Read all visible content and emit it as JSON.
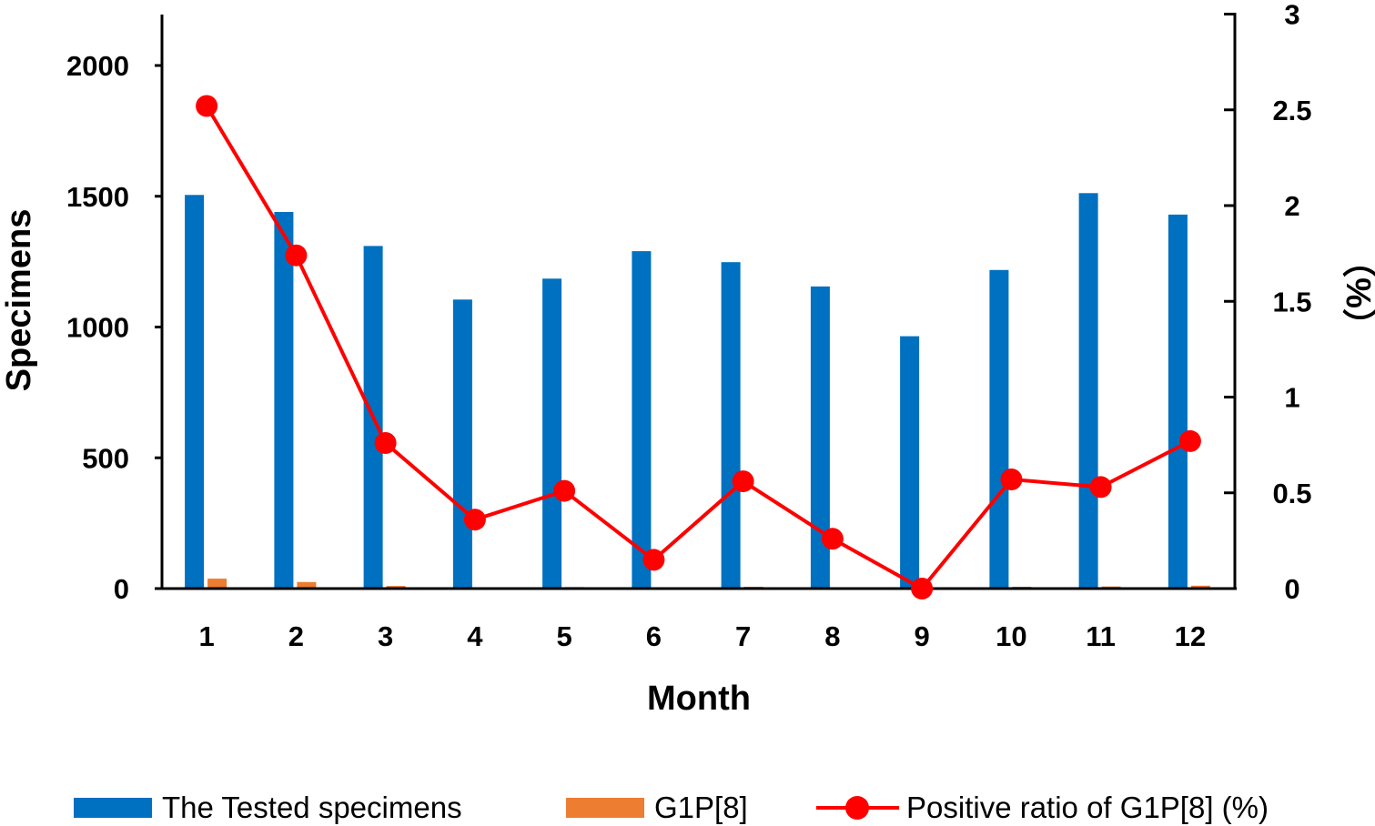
{
  "chart_data": {
    "type": "bar",
    "categories": [
      "1",
      "2",
      "3",
      "4",
      "5",
      "6",
      "7",
      "8",
      "9",
      "10",
      "11",
      "12"
    ],
    "xlabel": "Month",
    "ylabel": "Specimens",
    "y2label": "（%）",
    "ylim": [
      0,
      2200
    ],
    "yticks": [
      0,
      500,
      1000,
      1500,
      2000
    ],
    "y2lim": [
      0,
      3
    ],
    "y2ticks": [
      0,
      0.5,
      1,
      1.5,
      2,
      2.5,
      3
    ],
    "series": [
      {
        "name": "The Tested specimens",
        "type": "bar",
        "axis": "left",
        "color": "#0070C0",
        "values": [
          1505,
          1440,
          1310,
          1105,
          1185,
          1290,
          1248,
          1155,
          965,
          1218,
          1512,
          1430
        ]
      },
      {
        "name": "G1P[8]",
        "type": "bar",
        "axis": "left",
        "color": "#ED7D31",
        "values": [
          38,
          25,
          10,
          4,
          6,
          2,
          7,
          3,
          0,
          7,
          8,
          11
        ]
      },
      {
        "name": "Positive ratio of G1P[8] (%)",
        "type": "line",
        "axis": "right",
        "color": "#FF0000",
        "values": [
          2.52,
          1.74,
          0.76,
          0.36,
          0.51,
          0.15,
          0.56,
          0.26,
          0.0,
          0.57,
          0.53,
          0.77
        ]
      }
    ],
    "legend": "bottom",
    "grid": false
  }
}
